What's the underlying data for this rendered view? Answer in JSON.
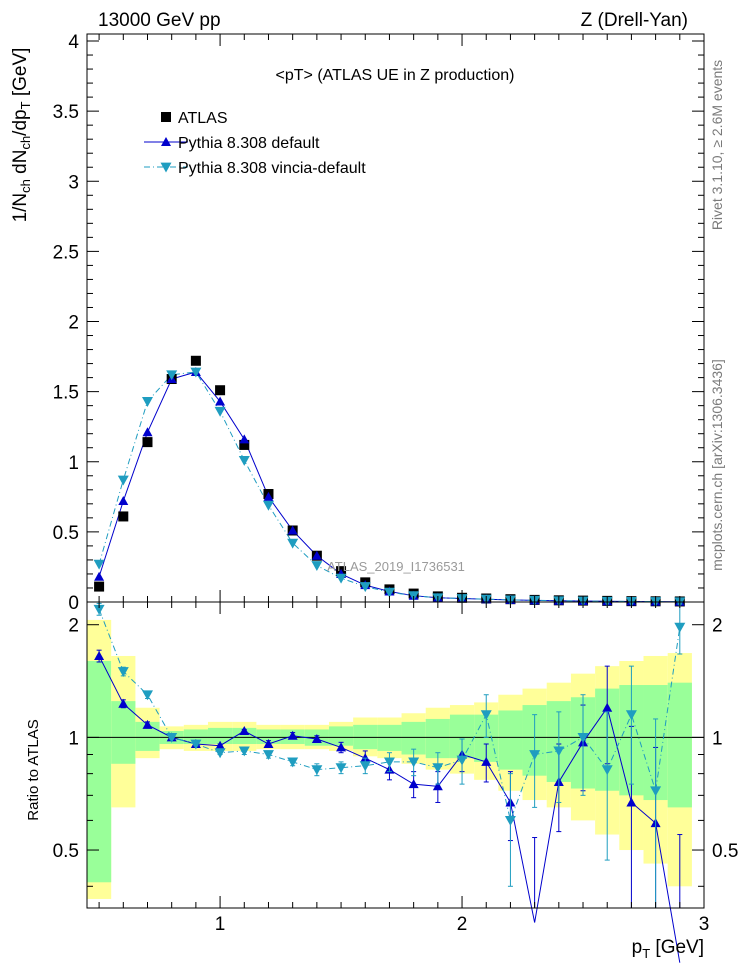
{
  "header": {
    "left": "13000 GeV pp",
    "right": "Z (Drell-Yan)"
  },
  "side_labels": {
    "rivet": "Rivet 3.1.10, ≥ 2.6M events",
    "mcplots": "mcplots.cern.ch [arXiv:1306.3436]"
  },
  "chart_data": {
    "type": "line",
    "title": "<pT>  (ATLAS UE in Z production)",
    "watermark": "ATLAS_2019_I1736531",
    "xlabel": "p_T [GeV]",
    "ylabel": "1/N_ch dN_ch/dp_T [GeV]",
    "ratio_ylabel": "Ratio to ATLAS",
    "xlim": [
      0.45,
      3.0
    ],
    "ylim": [
      0,
      4.05
    ],
    "ratio_ylim": [
      0.35,
      2.3
    ],
    "x_ticks": [
      "1",
      "2",
      "3"
    ],
    "y_ticks": [
      "0",
      "0.5",
      "1",
      "1.5",
      "2",
      "2.5",
      "3",
      "3.5",
      "4"
    ],
    "ratio_ticks": [
      "0.5",
      "1",
      "2"
    ],
    "grid": false,
    "legend_position": "top-left",
    "x": [
      0.5,
      0.6,
      0.7,
      0.8,
      0.9,
      1.0,
      1.1,
      1.2,
      1.3,
      1.4,
      1.5,
      1.6,
      1.7,
      1.8,
      1.9,
      2.0,
      2.1,
      2.2,
      2.3,
      2.4,
      2.5,
      2.6,
      2.7,
      2.8,
      2.9
    ],
    "series": [
      {
        "name": "ATLAS",
        "color": "#000000",
        "marker": "square",
        "values": [
          0.11,
          0.61,
          1.14,
          1.59,
          1.72,
          1.51,
          1.12,
          0.77,
          0.51,
          0.33,
          0.22,
          0.14,
          0.09,
          0.06,
          0.04,
          0.03,
          0.025,
          0.02,
          0.015,
          0.012,
          0.01,
          0.008,
          0.006,
          0.005,
          0.004
        ]
      },
      {
        "name": "Pythia 8.308 default",
        "color": "#0000cc",
        "marker": "triangle-up",
        "line": "solid",
        "values": [
          0.18,
          0.72,
          1.21,
          1.59,
          1.64,
          1.43,
          1.16,
          0.75,
          0.51,
          0.33,
          0.2,
          0.12,
          0.075,
          0.045,
          0.03,
          0.025,
          0.02,
          0.015,
          0.012,
          0.009,
          0.007,
          0.005,
          0.004,
          0.003,
          0.002
        ]
      },
      {
        "name": "Pythia 8.308 vincia-default",
        "color": "#1f9dc0",
        "marker": "triangle-down",
        "line": "dashdot",
        "values": [
          0.27,
          0.87,
          1.43,
          1.62,
          1.64,
          1.36,
          1.01,
          0.69,
          0.42,
          0.26,
          0.17,
          0.11,
          0.07,
          0.045,
          0.03,
          0.025,
          0.02,
          0.015,
          0.012,
          0.009,
          0.007,
          0.005,
          0.004,
          0.003,
          0.002
        ]
      }
    ],
    "ratio_series": [
      {
        "name": "Pythia 8.308 default",
        "values": [
          1.65,
          1.23,
          1.08,
          1.0,
          0.96,
          0.95,
          1.04,
          0.96,
          1.01,
          0.99,
          0.94,
          0.88,
          0.82,
          0.75,
          0.74,
          0.9,
          0.86,
          0.67,
          0.32,
          0.76,
          0.97,
          1.2,
          0.67,
          0.59,
          0.25
        ],
        "errors": [
          0.06,
          0.03,
          0.02,
          0.01,
          0.01,
          0.01,
          0.01,
          0.02,
          0.02,
          0.02,
          0.03,
          0.04,
          0.05,
          0.06,
          0.07,
          0.09,
          0.1,
          0.14,
          0.22,
          0.2,
          0.25,
          0.35,
          0.4,
          0.35,
          0.3
        ]
      },
      {
        "name": "Pythia 8.308 vincia-default",
        "values": [
          2.2,
          1.5,
          1.3,
          1.0,
          0.96,
          0.91,
          0.92,
          0.9,
          0.86,
          0.82,
          0.83,
          0.84,
          0.86,
          0.86,
          0.83,
          0.87,
          1.15,
          0.6,
          0.9,
          0.92,
          1.0,
          0.82,
          1.15,
          0.72,
          1.97
        ],
        "errors": [
          0.08,
          0.04,
          0.03,
          0.01,
          0.01,
          0.01,
          0.02,
          0.02,
          0.02,
          0.03,
          0.03,
          0.04,
          0.05,
          0.07,
          0.08,
          0.12,
          0.15,
          0.2,
          0.25,
          0.25,
          0.3,
          0.35,
          0.4,
          0.4,
          0.3
        ]
      }
    ],
    "bands": {
      "inner_color": "#99ff99",
      "outer_color": "#ffff99",
      "inner": [
        [
          0.41,
          1.6
        ],
        [
          0.85,
          1.25
        ],
        [
          0.92,
          1.1
        ],
        [
          0.96,
          1.04
        ],
        [
          0.96,
          1.05
        ],
        [
          0.96,
          1.06
        ],
        [
          0.96,
          1.06
        ],
        [
          0.96,
          1.05
        ],
        [
          0.96,
          1.05
        ],
        [
          0.95,
          1.05
        ],
        [
          0.95,
          1.07
        ],
        [
          0.93,
          1.08
        ],
        [
          0.92,
          1.08
        ],
        [
          0.9,
          1.1
        ],
        [
          0.88,
          1.12
        ],
        [
          0.88,
          1.15
        ],
        [
          0.86,
          1.15
        ],
        [
          0.82,
          1.18
        ],
        [
          0.79,
          1.22
        ],
        [
          0.76,
          1.25
        ],
        [
          0.73,
          1.28
        ],
        [
          0.72,
          1.35
        ],
        [
          0.7,
          1.38
        ],
        [
          0.68,
          1.38
        ],
        [
          0.65,
          1.4
        ]
      ],
      "outer": [
        [
          0.37,
          2.06
        ],
        [
          0.65,
          1.65
        ],
        [
          0.88,
          1.2
        ],
        [
          0.93,
          1.07
        ],
        [
          0.92,
          1.08
        ],
        [
          0.92,
          1.1
        ],
        [
          0.92,
          1.1
        ],
        [
          0.93,
          1.08
        ],
        [
          0.93,
          1.08
        ],
        [
          0.93,
          1.08
        ],
        [
          0.92,
          1.1
        ],
        [
          0.89,
          1.13
        ],
        [
          0.88,
          1.13
        ],
        [
          0.85,
          1.16
        ],
        [
          0.82,
          1.2
        ],
        [
          0.8,
          1.22
        ],
        [
          0.77,
          1.24
        ],
        [
          0.72,
          1.3
        ],
        [
          0.68,
          1.35
        ],
        [
          0.65,
          1.4
        ],
        [
          0.6,
          1.48
        ],
        [
          0.55,
          1.55
        ],
        [
          0.5,
          1.6
        ],
        [
          0.46,
          1.65
        ],
        [
          0.4,
          1.68
        ]
      ]
    }
  }
}
